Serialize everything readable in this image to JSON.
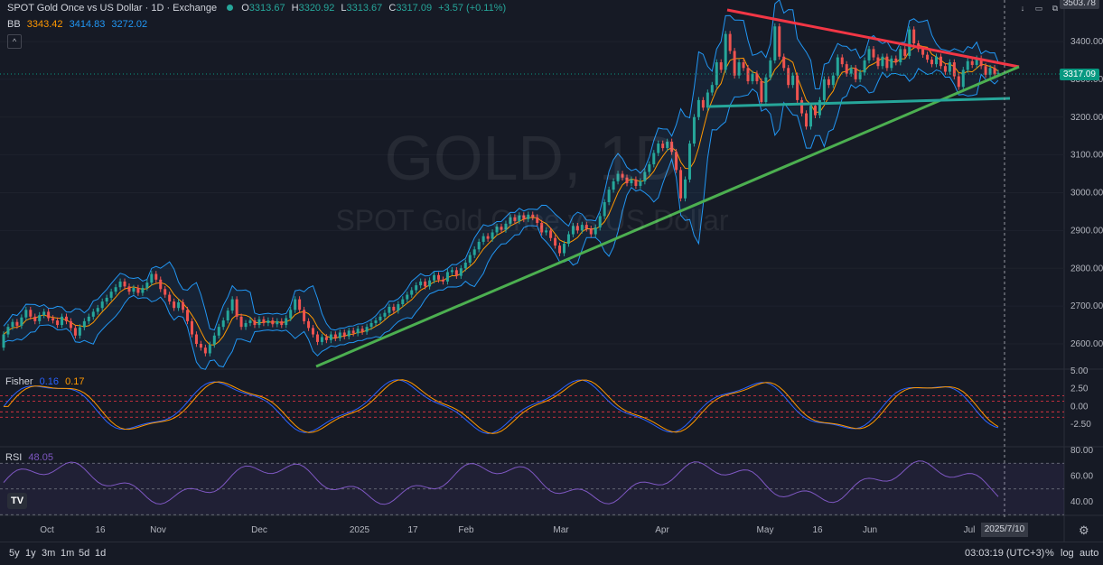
{
  "header": {
    "symbol": "SPOT Gold Once vs US Dollar · 1D · Exchange",
    "o_label": "O",
    "o_value": "3313.67",
    "h_label": "H",
    "h_value": "3320.92",
    "l_label": "L",
    "l_value": "3313.67",
    "c_label": "C",
    "c_value": "3317.09",
    "change": "+3.57 (+0.11%)"
  },
  "bb": {
    "label": "BB",
    "basis": "3343.42",
    "upper": "3414.83",
    "lower": "3272.02"
  },
  "watermark": {
    "main": "GOLD, 1D",
    "sub": "SPOT Gold Once vs US Dollar"
  },
  "price_tags": {
    "last": "3317.09",
    "top": "3503.78"
  },
  "fisher": {
    "label": "Fisher",
    "v1": "0.16",
    "v2": "0.17"
  },
  "rsi": {
    "label": "RSI",
    "value": "48.05"
  },
  "timeframes": [
    "5y",
    "1y",
    "3m",
    "1m",
    "5d",
    "1d"
  ],
  "footer": {
    "time": "03:03:19 (UTC+3)",
    "percent": "%",
    "log": "log",
    "auto": "auto"
  },
  "date_badge": "2025/7/10",
  "colors": {
    "bg": "#161a25",
    "up": "#26a69a",
    "down": "#ef5350",
    "bb_band": "#2962ff",
    "bb_basis": "#ff9800",
    "trend_red": "#f23645",
    "trend_green": "#4caf50",
    "trend_teal": "#26a69a",
    "fisher_1": "#2962ff",
    "fisher_2": "#ff9800",
    "rsi": "#7e57c2"
  },
  "chart_data": {
    "type": "candlestick",
    "x_tick_labels": [
      "Oct",
      "16",
      "Nov",
      "Dec",
      "2025",
      "17",
      "Feb",
      "Mar",
      "Apr",
      "May",
      "16",
      "Jun",
      "Jul"
    ],
    "price_axis": {
      "range": [
        2550,
        3500
      ],
      "ticks": [
        3400,
        3300,
        3200,
        3100,
        3000,
        2900,
        2800,
        2700,
        2600
      ]
    },
    "fisher_axis": {
      "range": [
        -3.5,
        5.0
      ],
      "ticks": [
        5.0,
        2.5,
        0.0,
        -2.5
      ]
    },
    "rsi_axis": {
      "range": [
        30,
        80
      ],
      "ticks": [
        80.0,
        60.0,
        40.0
      ]
    },
    "candles": [
      [
        0,
        2590,
        2625
      ],
      [
        5,
        2625,
        2645
      ],
      [
        10,
        2645,
        2658
      ],
      [
        15,
        2658,
        2648
      ],
      [
        20,
        2648,
        2670
      ],
      [
        25,
        2670,
        2690
      ],
      [
        30,
        2690,
        2672
      ],
      [
        35,
        2672,
        2660
      ],
      [
        40,
        2660,
        2676
      ],
      [
        45,
        2676,
        2685
      ],
      [
        50,
        2685,
        2668
      ],
      [
        55,
        2668,
        2662
      ],
      [
        60,
        2662,
        2650
      ],
      [
        65,
        2650,
        2672
      ],
      [
        70,
        2672,
        2660
      ],
      [
        75,
        2660,
        2642
      ],
      [
        80,
        2642,
        2622
      ],
      [
        85,
        2622,
        2644
      ],
      [
        90,
        2644,
        2660
      ],
      [
        95,
        2660,
        2672
      ],
      [
        100,
        2672,
        2685
      ],
      [
        105,
        2685,
        2695
      ],
      [
        110,
        2695,
        2712
      ],
      [
        115,
        2712,
        2722
      ],
      [
        120,
        2722,
        2738
      ],
      [
        125,
        2738,
        2750
      ],
      [
        130,
        2750,
        2765
      ],
      [
        135,
        2765,
        2752
      ],
      [
        140,
        2752,
        2738
      ],
      [
        145,
        2738,
        2748
      ],
      [
        150,
        2748,
        2735
      ],
      [
        155,
        2735,
        2748
      ],
      [
        160,
        2748,
        2762
      ],
      [
        165,
        2762,
        2785
      ],
      [
        170,
        2785,
        2770
      ],
      [
        175,
        2770,
        2745
      ],
      [
        180,
        2745,
        2730
      ],
      [
        185,
        2730,
        2712
      ],
      [
        190,
        2712,
        2695
      ],
      [
        195,
        2695,
        2710
      ],
      [
        200,
        2710,
        2690
      ],
      [
        205,
        2690,
        2660
      ],
      [
        210,
        2660,
        2625
      ],
      [
        215,
        2625,
        2600
      ],
      [
        220,
        2600,
        2590
      ],
      [
        225,
        2590,
        2575
      ],
      [
        230,
        2575,
        2598
      ],
      [
        235,
        2598,
        2622
      ],
      [
        240,
        2622,
        2645
      ],
      [
        245,
        2645,
        2662
      ],
      [
        250,
        2662,
        2688
      ],
      [
        255,
        2688,
        2718
      ],
      [
        260,
        2718,
        2672
      ],
      [
        265,
        2672,
        2645
      ],
      [
        270,
        2645,
        2655
      ],
      [
        275,
        2655,
        2662
      ],
      [
        280,
        2662,
        2650
      ],
      [
        285,
        2650,
        2665
      ],
      [
        290,
        2665,
        2655
      ],
      [
        295,
        2655,
        2662
      ],
      [
        300,
        2662,
        2652
      ],
      [
        305,
        2652,
        2660
      ],
      [
        310,
        2660,
        2650
      ],
      [
        315,
        2650,
        2668
      ],
      [
        320,
        2668,
        2690
      ],
      [
        325,
        2690,
        2718
      ],
      [
        330,
        2718,
        2690
      ],
      [
        335,
        2690,
        2660
      ],
      [
        340,
        2660,
        2642
      ],
      [
        345,
        2642,
        2625
      ],
      [
        350,
        2625,
        2605
      ],
      [
        355,
        2605,
        2618
      ],
      [
        360,
        2618,
        2610
      ],
      [
        365,
        2610,
        2625
      ],
      [
        370,
        2625,
        2615
      ],
      [
        375,
        2615,
        2630
      ],
      [
        380,
        2630,
        2620
      ],
      [
        385,
        2620,
        2635
      ],
      [
        390,
        2635,
        2628
      ],
      [
        395,
        2628,
        2640
      ],
      [
        400,
        2640,
        2632
      ],
      [
        405,
        2632,
        2645
      ],
      [
        410,
        2645,
        2655
      ],
      [
        415,
        2655,
        2662
      ],
      [
        420,
        2662,
        2672
      ],
      [
        425,
        2672,
        2682
      ],
      [
        430,
        2682,
        2698
      ],
      [
        435,
        2698,
        2688
      ],
      [
        440,
        2688,
        2705
      ],
      [
        445,
        2705,
        2718
      ],
      [
        450,
        2718,
        2730
      ],
      [
        455,
        2730,
        2742
      ],
      [
        460,
        2742,
        2755
      ],
      [
        465,
        2755,
        2765
      ],
      [
        470,
        2765,
        2752
      ],
      [
        475,
        2752,
        2768
      ],
      [
        480,
        2768,
        2782
      ],
      [
        485,
        2782,
        2770
      ],
      [
        490,
        2770,
        2765
      ],
      [
        495,
        2765,
        2790
      ],
      [
        500,
        2790,
        2795
      ],
      [
        505,
        2795,
        2780
      ],
      [
        510,
        2780,
        2800
      ],
      [
        515,
        2800,
        2815
      ],
      [
        520,
        2815,
        2835
      ],
      [
        525,
        2835,
        2850
      ],
      [
        530,
        2850,
        2870
      ],
      [
        535,
        2870,
        2885
      ],
      [
        540,
        2885,
        2878
      ],
      [
        545,
        2878,
        2895
      ],
      [
        550,
        2895,
        2910
      ],
      [
        555,
        2910,
        2902
      ],
      [
        560,
        2902,
        2918
      ],
      [
        565,
        2918,
        2935
      ],
      [
        570,
        2935,
        2925
      ],
      [
        575,
        2925,
        2940
      ],
      [
        580,
        2940,
        2930
      ],
      [
        585,
        2930,
        2942
      ],
      [
        590,
        2942,
        2935
      ],
      [
        595,
        2935,
        2920
      ],
      [
        600,
        2920,
        2895
      ],
      [
        605,
        2895,
        2900
      ],
      [
        610,
        2900,
        2880
      ],
      [
        615,
        2880,
        2860
      ],
      [
        620,
        2860,
        2840
      ],
      [
        625,
        2840,
        2865
      ],
      [
        630,
        2865,
        2890
      ],
      [
        635,
        2890,
        2912
      ],
      [
        640,
        2912,
        2900
      ],
      [
        645,
        2900,
        2915
      ],
      [
        650,
        2915,
        2905
      ],
      [
        655,
        2905,
        2890
      ],
      [
        660,
        2890,
        2908
      ],
      [
        665,
        2908,
        2938
      ],
      [
        670,
        2938,
        2975
      ],
      [
        675,
        2975,
        3008
      ],
      [
        680,
        3008,
        3030
      ],
      [
        685,
        3030,
        3050
      ],
      [
        690,
        3050,
        3040
      ],
      [
        695,
        3040,
        3025
      ],
      [
        700,
        3025,
        3035
      ],
      [
        705,
        3035,
        3018
      ],
      [
        710,
        3018,
        3030
      ],
      [
        715,
        3030,
        3055
      ],
      [
        720,
        3055,
        3075
      ],
      [
        725,
        3075,
        3105
      ],
      [
        730,
        3105,
        3130
      ],
      [
        735,
        3130,
        3118
      ],
      [
        740,
        3118,
        3135
      ],
      [
        745,
        3135,
        3108
      ],
      [
        750,
        3108,
        3060
      ],
      [
        755,
        3060,
        2985
      ],
      [
        760,
        2985,
        3035
      ],
      [
        765,
        3035,
        3130
      ],
      [
        770,
        3130,
        3200
      ],
      [
        775,
        3200,
        3245
      ],
      [
        780,
        3245,
        3225
      ],
      [
        785,
        3225,
        3265
      ],
      [
        790,
        3265,
        3285
      ],
      [
        795,
        3285,
        3345
      ],
      [
        800,
        3345,
        3325
      ],
      [
        805,
        3325,
        3420
      ],
      [
        810,
        3420,
        3375
      ],
      [
        815,
        3375,
        3310
      ],
      [
        820,
        3310,
        3345
      ],
      [
        825,
        3345,
        3330
      ],
      [
        830,
        3330,
        3295
      ],
      [
        835,
        3295,
        3315
      ],
      [
        840,
        3315,
        3295
      ],
      [
        845,
        3295,
        3240
      ],
      [
        850,
        3240,
        3305
      ],
      [
        855,
        3305,
        3350
      ],
      [
        860,
        3350,
        3440
      ],
      [
        865,
        3440,
        3360
      ],
      [
        870,
        3360,
        3330
      ],
      [
        875,
        3330,
        3285
      ],
      [
        880,
        3285,
        3310
      ],
      [
        885,
        3310,
        3245
      ],
      [
        890,
        3245,
        3210
      ],
      [
        895,
        3210,
        3175
      ],
      [
        900,
        3175,
        3230
      ],
      [
        905,
        3230,
        3205
      ],
      [
        910,
        3205,
        3245
      ],
      [
        915,
        3245,
        3300
      ],
      [
        920,
        3300,
        3285
      ],
      [
        925,
        3285,
        3310
      ],
      [
        930,
        3310,
        3358
      ],
      [
        935,
        3358,
        3340
      ],
      [
        940,
        3340,
        3315
      ],
      [
        945,
        3315,
        3330
      ],
      [
        950,
        3330,
        3300
      ],
      [
        955,
        3300,
        3318
      ],
      [
        960,
        3318,
        3350
      ],
      [
        965,
        3350,
        3380
      ],
      [
        970,
        3380,
        3358
      ],
      [
        975,
        3358,
        3335
      ],
      [
        980,
        3335,
        3360
      ],
      [
        985,
        3360,
        3330
      ],
      [
        990,
        3330,
        3355
      ],
      [
        995,
        3355,
        3345
      ],
      [
        1000,
        3345,
        3380
      ],
      [
        1005,
        3380,
        3362
      ],
      [
        1010,
        3362,
        3432
      ],
      [
        1015,
        3432,
        3395
      ],
      [
        1020,
        3395,
        3380
      ],
      [
        1025,
        3380,
        3365
      ],
      [
        1030,
        3365,
        3352
      ],
      [
        1035,
        3352,
        3340
      ],
      [
        1040,
        3340,
        3360
      ],
      [
        1045,
        3360,
        3335
      ],
      [
        1050,
        3335,
        3320
      ],
      [
        1055,
        3320,
        3345
      ],
      [
        1060,
        3345,
        3308
      ],
      [
        1065,
        3308,
        3280
      ],
      [
        1070,
        3280,
        3325
      ],
      [
        1075,
        3325,
        3348
      ],
      [
        1080,
        3348,
        3338
      ],
      [
        1085,
        3338,
        3355
      ],
      [
        1090,
        3355,
        3335
      ],
      [
        1095,
        3335,
        3312
      ],
      [
        1100,
        3312,
        3330
      ],
      [
        1105,
        3330,
        3313
      ],
      [
        1109,
        3313.67,
        3317.09
      ]
    ]
  }
}
